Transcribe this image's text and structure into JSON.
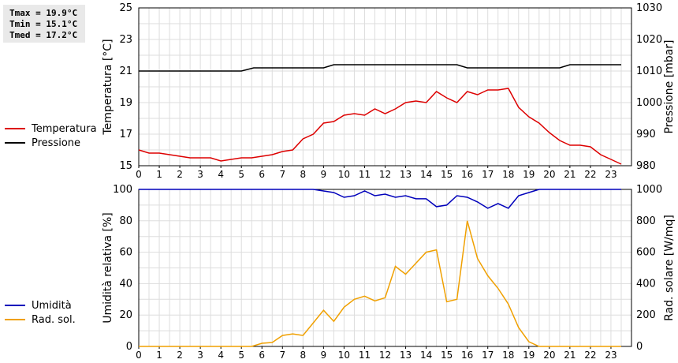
{
  "stats": {
    "tmax": "Tmax = 19.9°C",
    "tmin": "Tmin = 15.1°C",
    "tmed": "Tmed = 17.2°C"
  },
  "colors": {
    "temperature": "#dd0000",
    "pressure": "#000000",
    "humidity": "#0000bb",
    "solar": "#f0a000",
    "grid": "#dddddd"
  },
  "chart_data": [
    {
      "type": "line",
      "ylabel": "Temperatura [°C]",
      "y2label": "Pressione [mbar]",
      "xlim": [
        0,
        24
      ],
      "xticks": [
        "0",
        "1",
        "2",
        "3",
        "4",
        "5",
        "6",
        "7",
        "8",
        "9",
        "10",
        "11",
        "12",
        "13",
        "14",
        "15",
        "16",
        "17",
        "18",
        "19",
        "20",
        "21",
        "22",
        "23"
      ],
      "ylim": [
        15,
        25
      ],
      "yticks": [
        "15",
        "17",
        "19",
        "21",
        "23",
        "25"
      ],
      "y2lim": [
        980,
        1030
      ],
      "y2ticks": [
        "980",
        "990",
        "1000",
        "1010",
        "1020",
        "1030"
      ],
      "grid": true,
      "legend_position": "left",
      "series": [
        {
          "name": "Temperatura",
          "axis": "left",
          "x": [
            0,
            0.5,
            1,
            1.5,
            2,
            2.5,
            3,
            3.5,
            4,
            4.5,
            5,
            5.5,
            6,
            6.5,
            7,
            7.5,
            8,
            8.5,
            9,
            9.5,
            10,
            10.5,
            11,
            11.5,
            12,
            12.5,
            13,
            13.5,
            14,
            14.5,
            15,
            15.5,
            16,
            16.5,
            17,
            17.5,
            18,
            18.5,
            19,
            19.5,
            20,
            20.5,
            21,
            21.5,
            22,
            22.5,
            23,
            23.5
          ],
          "values": [
            16.0,
            15.8,
            15.8,
            15.7,
            15.6,
            15.5,
            15.5,
            15.5,
            15.3,
            15.4,
            15.5,
            15.5,
            15.6,
            15.7,
            15.9,
            16.0,
            16.7,
            17.0,
            17.7,
            17.8,
            18.2,
            18.3,
            18.2,
            18.6,
            18.3,
            18.6,
            19.0,
            19.1,
            19.0,
            19.7,
            19.3,
            19.0,
            19.7,
            19.5,
            19.8,
            19.8,
            19.9,
            18.7,
            18.1,
            17.7,
            17.1,
            16.6,
            16.3,
            16.3,
            16.2,
            15.7,
            15.4,
            15.1
          ]
        },
        {
          "name": "Pressione",
          "axis": "right",
          "x": [
            0,
            5,
            5.6,
            9,
            9.5,
            15.5,
            16,
            20.5,
            21,
            23.5
          ],
          "values": [
            1010,
            1010,
            1011,
            1011,
            1012,
            1012,
            1011,
            1011,
            1012,
            1012
          ]
        }
      ]
    },
    {
      "type": "line",
      "ylabel": "Umidità relativa [%]",
      "y2label": "Rad. solare [W/mq]",
      "xlim": [
        0,
        24
      ],
      "xticks": [
        "0",
        "1",
        "2",
        "3",
        "4",
        "5",
        "6",
        "7",
        "8",
        "9",
        "10",
        "11",
        "12",
        "13",
        "14",
        "15",
        "16",
        "17",
        "18",
        "19",
        "20",
        "21",
        "22",
        "23"
      ],
      "ylim": [
        0,
        100
      ],
      "yticks": [
        "0",
        "20",
        "40",
        "60",
        "80",
        "100"
      ],
      "y2lim": [
        0,
        1000
      ],
      "y2ticks": [
        "0",
        "200",
        "400",
        "600",
        "800",
        "1000"
      ],
      "grid": true,
      "legend_position": "left",
      "series": [
        {
          "name": "Umidità",
          "axis": "left",
          "x": [
            0,
            8.5,
            9,
            9.5,
            10,
            10.5,
            11,
            11.5,
            12,
            12.5,
            13,
            13.5,
            14,
            14.5,
            15,
            15.5,
            16,
            16.5,
            17,
            17.5,
            18,
            18.5,
            19,
            19.5,
            20,
            23.5
          ],
          "values": [
            100,
            100,
            99,
            98,
            95,
            96,
            99,
            96,
            97,
            95,
            96,
            94,
            94,
            89,
            90,
            96,
            95,
            92,
            88,
            91,
            88,
            96,
            98,
            100,
            100,
            100
          ]
        },
        {
          "name": "Rad. sol.",
          "axis": "right",
          "x": [
            0,
            5.5,
            6,
            6.5,
            7,
            7.5,
            8,
            8.5,
            9,
            9.5,
            10,
            10.5,
            11,
            11.5,
            12,
            12.5,
            13,
            13.5,
            14,
            14.5,
            15,
            15.5,
            16,
            16.5,
            17,
            17.5,
            18,
            18.5,
            19,
            19.5,
            20,
            23.5
          ],
          "values": [
            0,
            0,
            20,
            25,
            70,
            80,
            70,
            150,
            230,
            160,
            250,
            300,
            320,
            290,
            310,
            510,
            460,
            530,
            600,
            615,
            285,
            300,
            800,
            560,
            450,
            370,
            270,
            120,
            30,
            0,
            0,
            0
          ]
        }
      ]
    }
  ]
}
